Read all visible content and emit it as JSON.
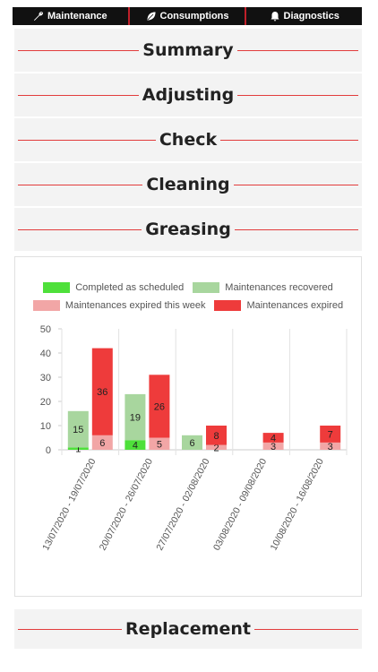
{
  "nav": {
    "tabs": [
      {
        "label": "Maintenance",
        "icon": "wrench-icon"
      },
      {
        "label": "Consumptions",
        "icon": "leaf-icon"
      },
      {
        "label": "Diagnostics",
        "icon": "bell-icon"
      }
    ]
  },
  "sections": [
    {
      "label": "Summary"
    },
    {
      "label": "Adjusting"
    },
    {
      "label": "Check"
    },
    {
      "label": "Cleaning"
    },
    {
      "label": "Greasing"
    }
  ],
  "footer_section": {
    "label": "Replacement"
  },
  "colors": {
    "accent_red": "#e23c3c",
    "completed": "#4ee03a",
    "recovered": "#a8d69e",
    "expired_week": "#f2a6a6",
    "expired": "#ee3b3b"
  },
  "chart_data": {
    "type": "bar",
    "legend": [
      {
        "name": "Completed as scheduled",
        "color": "#4ee03a"
      },
      {
        "name": "Maintenances recovered",
        "color": "#a8d69e"
      },
      {
        "name": "Maintenances expired this week",
        "color": "#f2a6a6"
      },
      {
        "name": "Maintenances expired",
        "color": "#ee3b3b"
      }
    ],
    "categories": [
      "13/07/2020 - 19/07/2020",
      "20/07/2020 - 26/07/2020",
      "27/07/2020 - 02/08/2020",
      "03/08/2020 - 09/08/2020",
      "10/08/2020 - 16/08/2020"
    ],
    "stacks": [
      {
        "name": "left",
        "series": [
          {
            "name": "Completed as scheduled",
            "values": [
              1,
              4,
              0,
              0,
              0
            ],
            "color": "#4ee03a"
          },
          {
            "name": "Maintenances recovered",
            "values": [
              15,
              19,
              6,
              0,
              0
            ],
            "color": "#a8d69e"
          }
        ]
      },
      {
        "name": "right",
        "series": [
          {
            "name": "Maintenances expired this week",
            "values": [
              6,
              5,
              2,
              3,
              3
            ],
            "color": "#f2a6a6"
          },
          {
            "name": "Maintenances expired",
            "values": [
              36,
              26,
              8,
              4,
              7
            ],
            "color": "#ee3b3b"
          }
        ]
      }
    ],
    "ylim": [
      0,
      50
    ],
    "yticks": [
      0,
      10,
      20,
      30,
      40,
      50
    ],
    "grid": true,
    "legend_position": "top"
  }
}
